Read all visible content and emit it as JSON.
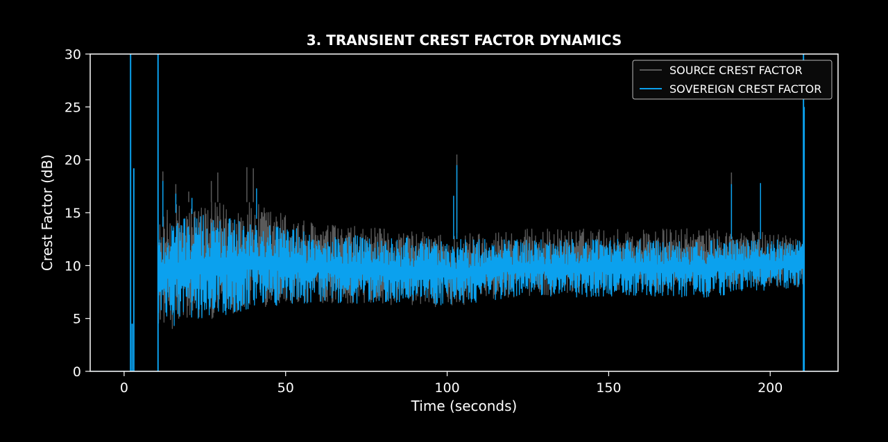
{
  "chart_data": {
    "type": "line",
    "title": "3. TRANSIENT CREST FACTOR DYNAMICS",
    "xlabel": "Time (seconds)",
    "ylabel": "Crest Factor (dB)",
    "xlim": [
      -10.5,
      221
    ],
    "ylim": [
      0,
      30
    ],
    "xticks": [
      0,
      50,
      100,
      150,
      200
    ],
    "yticks": [
      0,
      5,
      10,
      15,
      20,
      25,
      30
    ],
    "grid": false,
    "legend_position": "top-right",
    "series": [
      {
        "name": "SOURCE CREST FACTOR",
        "color": "#5a5a5a",
        "active_range": [
          10.5,
          210.5
        ],
        "baseline_band": [
          [
            10.5,
            11.5
          ],
          [
            15,
            8.5
          ],
          [
            40,
            6.5
          ],
          [
            60,
            7.0
          ],
          [
            100,
            7.0
          ],
          [
            120,
            7.0
          ],
          [
            150,
            8.0
          ],
          [
            180,
            8.0
          ],
          [
            210,
            8.0
          ]
        ],
        "upper_band": [
          [
            10.5,
            14.0
          ],
          [
            15,
            16.0
          ],
          [
            40,
            16.0
          ],
          [
            60,
            14.0
          ],
          [
            100,
            13.0
          ],
          [
            120,
            13.5
          ],
          [
            150,
            13.5
          ],
          [
            180,
            13.5
          ],
          [
            210,
            13.0
          ]
        ],
        "lower_band": [
          [
            10.5,
            4.5
          ],
          [
            15,
            4.0
          ],
          [
            40,
            6.0
          ],
          [
            60,
            6.5
          ],
          [
            100,
            6.0
          ],
          [
            120,
            7.0
          ],
          [
            150,
            7.5
          ],
          [
            180,
            7.5
          ],
          [
            210,
            8.0
          ]
        ],
        "peaks": [
          [
            12,
            18.9
          ],
          [
            16,
            17.7
          ],
          [
            20,
            17.0
          ],
          [
            27,
            18.0
          ],
          [
            29,
            18.8
          ],
          [
            38,
            19.3
          ],
          [
            40,
            19.2
          ],
          [
            103,
            20.5
          ],
          [
            188,
            18.8
          ]
        ],
        "spikes": []
      },
      {
        "name": "SOVEREIGN CREST FACTOR",
        "color": "#0ba1ee",
        "active_range": [
          10.5,
          210.5
        ],
        "upper_band": [
          [
            10.5,
            13.0
          ],
          [
            15,
            15.0
          ],
          [
            40,
            14.5
          ],
          [
            60,
            13.0
          ],
          [
            100,
            12.5
          ],
          [
            120,
            12.5
          ],
          [
            150,
            12.5
          ],
          [
            180,
            12.5
          ],
          [
            210,
            12.5
          ]
        ],
        "lower_band": [
          [
            10.5,
            5.0
          ],
          [
            15,
            4.0
          ],
          [
            40,
            6.0
          ],
          [
            60,
            6.5
          ],
          [
            100,
            6.0
          ],
          [
            120,
            7.0
          ],
          [
            150,
            7.0
          ],
          [
            180,
            7.0
          ],
          [
            210,
            8.0
          ]
        ],
        "peaks": [
          [
            12,
            18.0
          ],
          [
            16,
            16.8
          ],
          [
            21,
            16.4
          ],
          [
            41,
            17.3
          ],
          [
            102,
            16.6
          ],
          [
            103,
            19.5
          ],
          [
            188,
            17.7
          ],
          [
            197,
            17.8
          ]
        ],
        "spikes": [
          [
            2.0,
            30
          ],
          [
            2.5,
            4.5
          ],
          [
            3.0,
            19.2
          ],
          [
            10.5,
            30
          ],
          [
            210.3,
            30
          ],
          [
            210.5,
            25
          ]
        ]
      }
    ]
  }
}
